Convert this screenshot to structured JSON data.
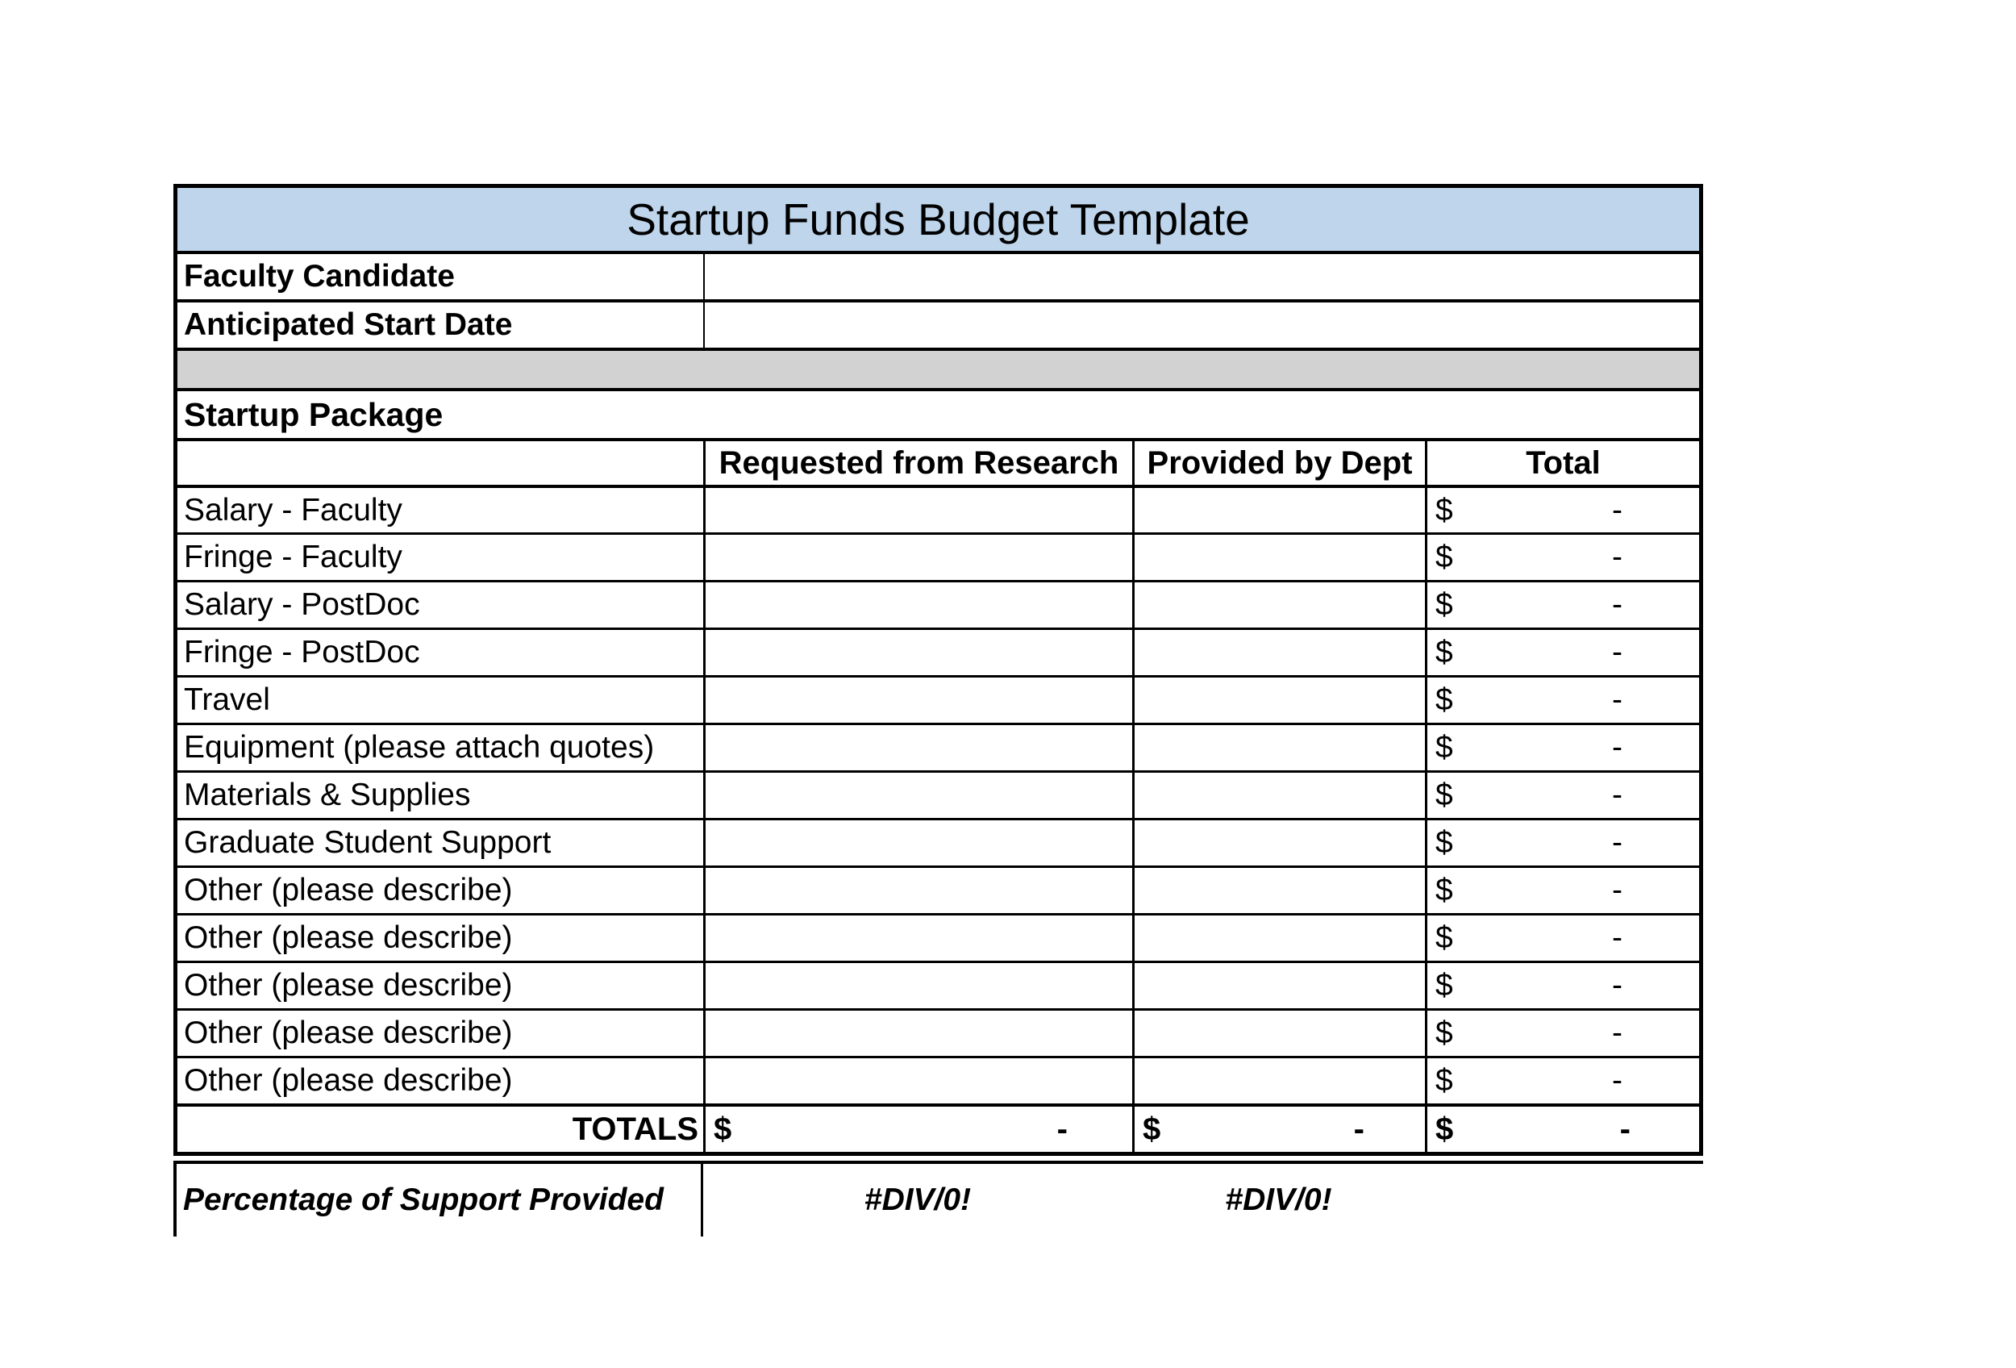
{
  "title": "Startup Funds Budget Template",
  "info_rows": {
    "faculty_candidate": {
      "label": "Faculty Candidate",
      "value": ""
    },
    "start_date": {
      "label": "Anticipated Start Date",
      "value": ""
    }
  },
  "section_header": "Startup Package",
  "columns": {
    "item": "",
    "requested": "Requested from Research",
    "provided": "Provided by Dept",
    "total": "Total"
  },
  "rows": [
    {
      "label": "Salary - Faculty",
      "requested": "",
      "provided": "",
      "total": {
        "c": "$",
        "v": "-"
      }
    },
    {
      "label": "Fringe - Faculty",
      "requested": "",
      "provided": "",
      "total": {
        "c": "$",
        "v": "-"
      }
    },
    {
      "label": "Salary - PostDoc",
      "requested": "",
      "provided": "",
      "total": {
        "c": "$",
        "v": "-"
      }
    },
    {
      "label": "Fringe - PostDoc",
      "requested": "",
      "provided": "",
      "total": {
        "c": "$",
        "v": "-"
      }
    },
    {
      "label": "Travel",
      "requested": "",
      "provided": "",
      "total": {
        "c": "$",
        "v": "-"
      }
    },
    {
      "label": "Equipment (please attach quotes)",
      "requested": "",
      "provided": "",
      "total": {
        "c": "$",
        "v": "-"
      }
    },
    {
      "label": "Materials & Supplies",
      "requested": "",
      "provided": "",
      "total": {
        "c": "$",
        "v": "-"
      }
    },
    {
      "label": "Graduate Student Support",
      "requested": "",
      "provided": "",
      "total": {
        "c": "$",
        "v": "-"
      }
    },
    {
      "label": "Other (please describe)",
      "requested": "",
      "provided": "",
      "total": {
        "c": "$",
        "v": "-"
      }
    },
    {
      "label": "Other (please describe)",
      "requested": "",
      "provided": "",
      "total": {
        "c": "$",
        "v": "-"
      }
    },
    {
      "label": "Other (please describe)",
      "requested": "",
      "provided": "",
      "total": {
        "c": "$",
        "v": "-"
      }
    },
    {
      "label": "Other (please describe)",
      "requested": "",
      "provided": "",
      "total": {
        "c": "$",
        "v": "-"
      }
    },
    {
      "label": "Other (please describe)",
      "requested": "",
      "provided": "",
      "total": {
        "c": "$",
        "v": "-"
      }
    }
  ],
  "totals": {
    "label": "TOTALS",
    "requested": {
      "c": "$",
      "v": "-"
    },
    "provided": {
      "c": "$",
      "v": "-"
    },
    "total": {
      "c": "$",
      "v": "-"
    }
  },
  "percentage": {
    "label": "Percentage of Support Provided",
    "requested": "#DIV/0!",
    "provided": "#DIV/0!"
  },
  "colors": {
    "title_bg": "#BED5EB",
    "divider_bg": "#D2D2D2",
    "border": "#000000"
  }
}
